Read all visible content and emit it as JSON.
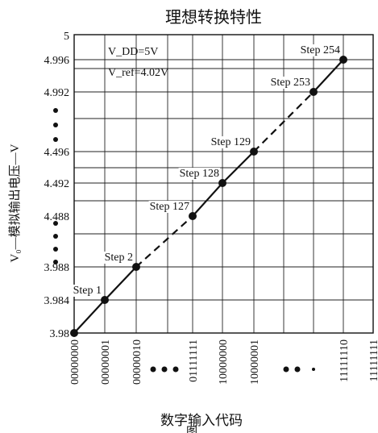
{
  "chart_data": {
    "type": "line",
    "title": "理想转换特性",
    "xlabel": "数字输入代码",
    "ylabel": "V₀—模拟输出电压—V",
    "grid": true,
    "annotations": {
      "vdd": "V_DD=5V",
      "vref": "V_ref=4.02V",
      "fig_mark": "图"
    },
    "x_ticks": [
      "00000000",
      "00000001",
      "00000010",
      "01111111",
      "10000000",
      "10000001",
      "11111110",
      "11111111"
    ],
    "x_ellipsis": [
      "• • •",
      "• • •"
    ],
    "y_ticks": [
      "3.98",
      "3.984",
      "3.988",
      "4.488",
      "4.492",
      "4.496",
      "4.992",
      "4.996",
      "5"
    ],
    "y_ellipsis": [
      "⋮",
      "⋮"
    ],
    "series": [
      {
        "style": "solid",
        "points": [
          {
            "x": "00000000",
            "y": 3.98
          },
          {
            "x": "00000001",
            "y": 3.984
          },
          {
            "x": "00000010",
            "y": 3.988
          }
        ]
      },
      {
        "style": "dashed",
        "points": [
          {
            "x": "00000010",
            "y": 3.988
          },
          {
            "x": "01111111",
            "y": 4.488
          }
        ]
      },
      {
        "style": "solid",
        "points": [
          {
            "x": "01111111",
            "y": 4.488
          },
          {
            "x": "10000000",
            "y": 4.492
          },
          {
            "x": "10000001",
            "y": 4.496
          }
        ]
      },
      {
        "style": "dashed",
        "points": [
          {
            "x": "10000001",
            "y": 4.496
          },
          {
            "x": "11111101",
            "y": 4.992
          }
        ]
      },
      {
        "style": "solid",
        "points": [
          {
            "x": "11111101",
            "y": 4.992
          },
          {
            "x": "11111110",
            "y": 4.996
          }
        ]
      }
    ],
    "markers": [
      {
        "label": "",
        "code": "00000000",
        "y": 3.98
      },
      {
        "label": "Step 1",
        "code": "00000001",
        "y": 3.984
      },
      {
        "label": "Step 2",
        "code": "00000010",
        "y": 3.988
      },
      {
        "label": "Step 127",
        "code": "01111111",
        "y": 4.488
      },
      {
        "label": "Step 128",
        "code": "10000000",
        "y": 4.492
      },
      {
        "label": "Step 129",
        "code": "10000001",
        "y": 4.496
      },
      {
        "label": "Step 253",
        "code": "11111101",
        "y": 4.992
      },
      {
        "label": "Step 254",
        "code": "11111110",
        "y": 4.996
      }
    ]
  }
}
